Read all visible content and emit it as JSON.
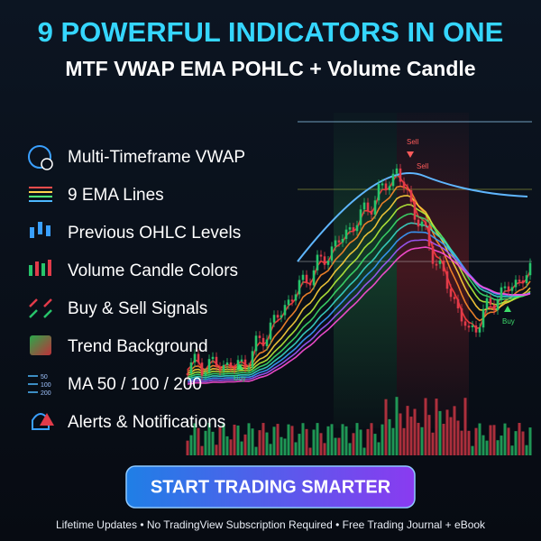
{
  "header": {
    "title": "9 POWERFUL INDICATORS IN ONE",
    "subtitle": "MTF VWAP EMA POHLC + Volume Candle"
  },
  "features": [
    "Multi-Timeframe VWAP",
    "9 EMA Lines",
    "Previous OHLC Levels",
    "Volume Candle Colors",
    "Buy & Sell Signals",
    "Trend Background",
    "MA 50 / 100 / 200",
    "Alerts & Notifications"
  ],
  "ma_icon_labels": [
    "50",
    "100",
    "200"
  ],
  "signals": {
    "sell": [
      "Sell",
      "Sell"
    ],
    "buy": [
      "Buy",
      "Buy"
    ]
  },
  "button": "START TRADING SMARTER",
  "footer": "Lifetime Updates • No TradingView Subscription Required • Free Trading Journal + eBook"
}
